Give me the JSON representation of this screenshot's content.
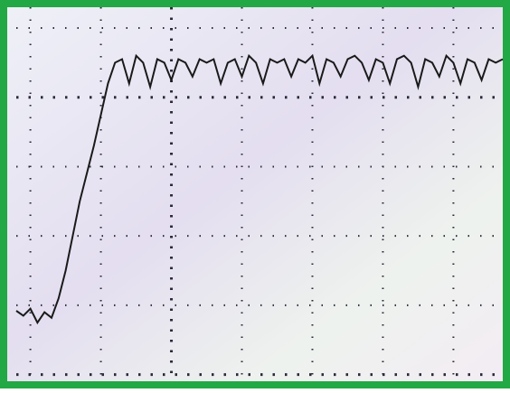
{
  "chart_data": {
    "type": "line",
    "x": [
      -0.2,
      -0.1,
      0.0,
      0.1,
      0.2,
      0.3,
      0.4,
      0.5,
      0.6,
      0.7,
      0.8,
      0.9,
      1.0,
      1.1,
      1.2,
      1.3,
      1.4,
      1.5,
      1.6,
      1.7,
      1.8,
      1.9,
      2.0,
      2.1,
      2.2,
      2.3,
      2.4,
      2.5,
      2.6,
      2.7,
      2.8,
      2.9,
      3.0,
      3.1,
      3.2,
      3.3,
      3.4,
      3.5,
      3.6,
      3.7,
      3.8,
      3.9,
      4.0,
      4.1,
      4.2,
      4.3,
      4.4,
      4.5,
      4.6,
      4.7,
      4.8,
      4.9,
      5.0,
      5.1,
      5.2,
      5.3,
      5.4,
      5.5,
      5.6,
      5.7,
      5.8,
      5.9,
      6.0,
      6.1,
      6.2,
      6.3,
      6.4,
      6.5,
      6.6,
      6.7
    ],
    "values": [
      0.92,
      0.85,
      0.95,
      0.75,
      0.9,
      0.82,
      1.1,
      1.5,
      2.0,
      2.5,
      2.9,
      3.3,
      3.75,
      4.2,
      4.5,
      4.55,
      4.2,
      4.6,
      4.5,
      4.15,
      4.55,
      4.5,
      4.25,
      4.55,
      4.5,
      4.3,
      4.55,
      4.5,
      4.55,
      4.2,
      4.5,
      4.55,
      4.3,
      4.6,
      4.5,
      4.2,
      4.55,
      4.5,
      4.55,
      4.3,
      4.55,
      4.5,
      4.6,
      4.2,
      4.55,
      4.5,
      4.3,
      4.55,
      4.6,
      4.5,
      4.25,
      4.55,
      4.5,
      4.2,
      4.55,
      4.6,
      4.5,
      4.15,
      4.55,
      4.5,
      4.3,
      4.6,
      4.5,
      4.2,
      4.55,
      4.5,
      4.25,
      4.55,
      4.5,
      4.55
    ],
    "color": "#1a1a1a",
    "xlim": [
      -0.2,
      6.7
    ],
    "ylim": [
      -0.07,
      5.3
    ],
    "xticks": [
      0,
      1,
      2,
      3,
      4,
      5,
      6
    ],
    "yticks": [
      0,
      1,
      2,
      3,
      4,
      5
    ],
    "grid": true
  }
}
